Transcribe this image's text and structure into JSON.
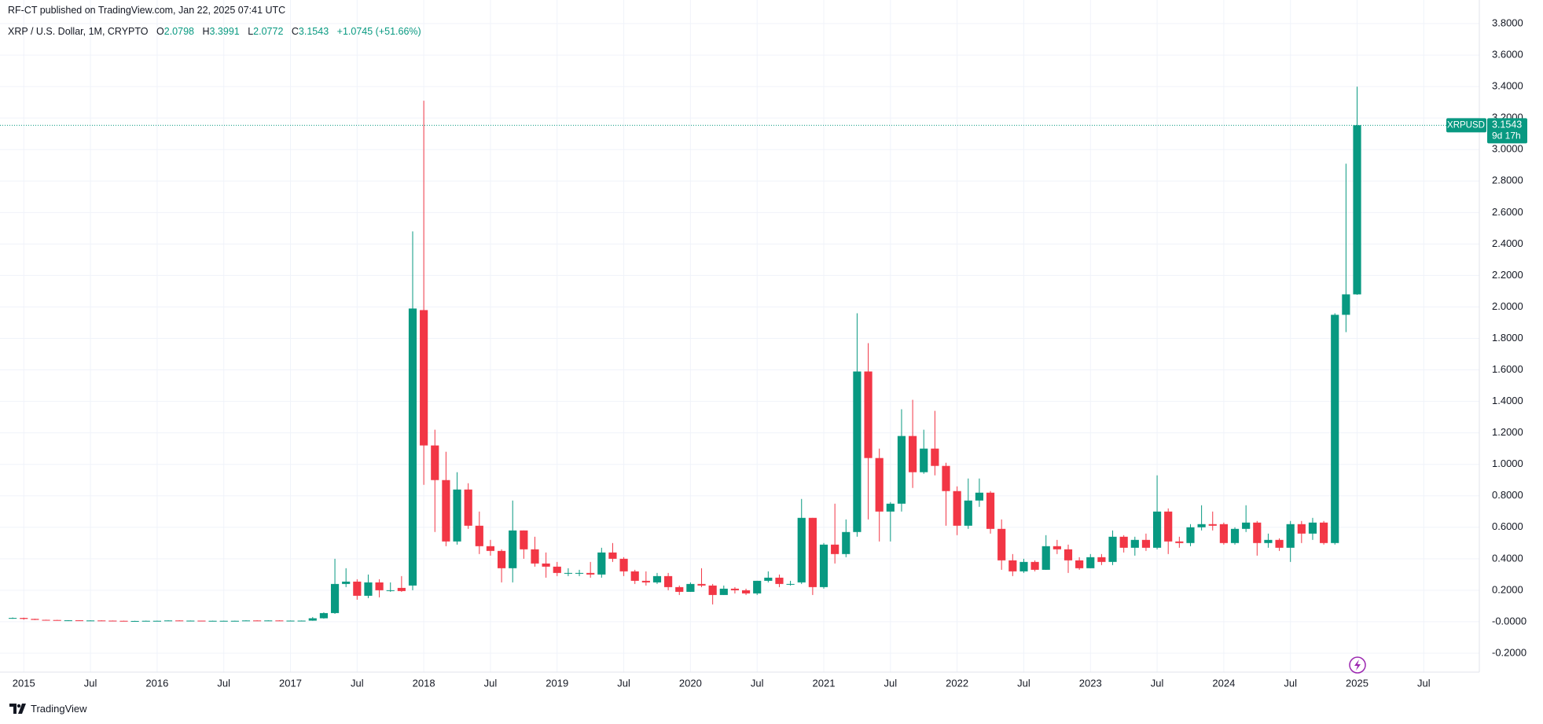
{
  "header": {
    "published": "RF-CT published on TradingView.com, Jan 22, 2025 07:41 UTC",
    "symbol": "XRP / U.S. Dollar, 1M, CRYPTO",
    "ohlc": [
      {
        "label": "O",
        "value": 2.0798
      },
      {
        "label": "H",
        "value": 3.3991
      },
      {
        "label": "L",
        "value": 2.0772
      },
      {
        "label": "C",
        "value": 3.1543
      }
    ],
    "change": "+1.0745",
    "change_pct": "(+51.66%)"
  },
  "footer": {
    "brand": "TradingView"
  },
  "chart_data": {
    "type": "candlestick",
    "up_color": "#089981",
    "down_color": "#f23645",
    "grid": true,
    "x": [
      "2014-12",
      "2015-01",
      "2015-02",
      "2015-03",
      "2015-04",
      "2015-05",
      "2015-06",
      "2015-07",
      "2015-08",
      "2015-09",
      "2015-10",
      "2015-11",
      "2015-12",
      "2016-01",
      "2016-02",
      "2016-03",
      "2016-04",
      "2016-05",
      "2016-06",
      "2016-07",
      "2016-08",
      "2016-09",
      "2016-10",
      "2016-11",
      "2016-12",
      "2017-01",
      "2017-02",
      "2017-03",
      "2017-04",
      "2017-05",
      "2017-06",
      "2017-07",
      "2017-08",
      "2017-09",
      "2017-10",
      "2017-11",
      "2017-12",
      "2018-01",
      "2018-02",
      "2018-03",
      "2018-04",
      "2018-05",
      "2018-06",
      "2018-07",
      "2018-08",
      "2018-09",
      "2018-10",
      "2018-11",
      "2018-12",
      "2019-01",
      "2019-02",
      "2019-03",
      "2019-04",
      "2019-05",
      "2019-06",
      "2019-07",
      "2019-08",
      "2019-09",
      "2019-10",
      "2019-11",
      "2019-12",
      "2020-01",
      "2020-02",
      "2020-03",
      "2020-04",
      "2020-05",
      "2020-06",
      "2020-07",
      "2020-08",
      "2020-09",
      "2020-10",
      "2020-11",
      "2020-12",
      "2021-01",
      "2021-02",
      "2021-03",
      "2021-04",
      "2021-05",
      "2021-06",
      "2021-07",
      "2021-08",
      "2021-09",
      "2021-10",
      "2021-11",
      "2021-12",
      "2022-01",
      "2022-02",
      "2022-03",
      "2022-04",
      "2022-05",
      "2022-06",
      "2022-07",
      "2022-08",
      "2022-09",
      "2022-10",
      "2022-11",
      "2022-12",
      "2023-01",
      "2023-02",
      "2023-03",
      "2023-04",
      "2023-05",
      "2023-06",
      "2023-07",
      "2023-08",
      "2023-09",
      "2023-10",
      "2023-11",
      "2023-12",
      "2024-01",
      "2024-02",
      "2024-03",
      "2024-04",
      "2024-05",
      "2024-06",
      "2024-07",
      "2024-08",
      "2024-09",
      "2024-10",
      "2024-11",
      "2024-12",
      "2025-01"
    ],
    "open": [
      0.02,
      0.024,
      0.018,
      0.012,
      0.011,
      0.008,
      0.009,
      0.008,
      0.008,
      0.007,
      0.006,
      0.005,
      0.005,
      0.006,
      0.006,
      0.008,
      0.007,
      0.007,
      0.006,
      0.006,
      0.006,
      0.006,
      0.008,
      0.007,
      0.008,
      0.006,
      0.007,
      0.007,
      0.022,
      0.055,
      0.24,
      0.255,
      0.165,
      0.25,
      0.2,
      0.215,
      0.23,
      1.98,
      1.12,
      0.9,
      0.51,
      0.84,
      0.61,
      0.48,
      0.45,
      0.34,
      0.58,
      0.46,
      0.37,
      0.35,
      0.31,
      0.31,
      0.31,
      0.3,
      0.44,
      0.4,
      0.32,
      0.26,
      0.25,
      0.29,
      0.22,
      0.19,
      0.24,
      0.23,
      0.17,
      0.21,
      0.2,
      0.18,
      0.26,
      0.28,
      0.24,
      0.25,
      0.66,
      0.22,
      0.49,
      0.43,
      0.57,
      1.59,
      1.04,
      0.7,
      0.75,
      1.18,
      0.95,
      1.1,
      0.99,
      0.83,
      0.61,
      0.77,
      0.82,
      0.59,
      0.39,
      0.32,
      0.38,
      0.33,
      0.48,
      0.46,
      0.39,
      0.34,
      0.41,
      0.38,
      0.54,
      0.47,
      0.52,
      0.47,
      0.7,
      0.51,
      0.5,
      0.6,
      0.62,
      0.62,
      0.5,
      0.59,
      0.63,
      0.5,
      0.52,
      0.47,
      0.62,
      0.56,
      0.63,
      0.5,
      1.95,
      2.0798
    ],
    "high": [
      0.027,
      0.026,
      0.019,
      0.013,
      0.012,
      0.01,
      0.01,
      0.009,
      0.009,
      0.008,
      0.007,
      0.006,
      0.007,
      0.007,
      0.009,
      0.009,
      0.008,
      0.007,
      0.007,
      0.007,
      0.007,
      0.009,
      0.009,
      0.009,
      0.009,
      0.008,
      0.008,
      0.03,
      0.06,
      0.4,
      0.34,
      0.27,
      0.3,
      0.27,
      0.25,
      0.29,
      2.48,
      3.31,
      1.22,
      1.08,
      0.95,
      0.88,
      0.7,
      0.52,
      0.46,
      0.77,
      0.58,
      0.54,
      0.44,
      0.38,
      0.34,
      0.33,
      0.38,
      0.47,
      0.5,
      0.41,
      0.33,
      0.32,
      0.31,
      0.31,
      0.23,
      0.25,
      0.34,
      0.24,
      0.23,
      0.22,
      0.21,
      0.26,
      0.32,
      0.3,
      0.26,
      0.78,
      0.66,
      0.5,
      0.75,
      0.65,
      1.96,
      1.77,
      1.1,
      0.76,
      1.35,
      1.41,
      1.22,
      1.34,
      1.01,
      0.86,
      0.91,
      0.91,
      0.83,
      0.65,
      0.43,
      0.4,
      0.39,
      0.55,
      0.52,
      0.49,
      0.41,
      0.43,
      0.43,
      0.58,
      0.55,
      0.54,
      0.56,
      0.93,
      0.72,
      0.54,
      0.62,
      0.74,
      0.7,
      0.63,
      0.6,
      0.74,
      0.64,
      0.56,
      0.53,
      0.64,
      0.64,
      0.66,
      0.64,
      1.96,
      2.91,
      3.3991
    ],
    "low": [
      0.019,
      0.013,
      0.011,
      0.01,
      0.007,
      0.007,
      0.008,
      0.007,
      0.006,
      0.006,
      0.005,
      0.004,
      0.004,
      0.005,
      0.005,
      0.006,
      0.006,
      0.005,
      0.005,
      0.005,
      0.005,
      0.005,
      0.006,
      0.006,
      0.006,
      0.006,
      0.006,
      0.006,
      0.02,
      0.05,
      0.22,
      0.14,
      0.15,
      0.155,
      0.19,
      0.19,
      0.2,
      0.87,
      0.57,
      0.48,
      0.49,
      0.59,
      0.43,
      0.42,
      0.25,
      0.25,
      0.4,
      0.35,
      0.28,
      0.29,
      0.29,
      0.29,
      0.28,
      0.28,
      0.38,
      0.29,
      0.24,
      0.23,
      0.24,
      0.2,
      0.17,
      0.19,
      0.22,
      0.11,
      0.17,
      0.18,
      0.17,
      0.17,
      0.25,
      0.22,
      0.23,
      0.24,
      0.17,
      0.21,
      0.37,
      0.41,
      0.54,
      0.65,
      0.51,
      0.51,
      0.7,
      0.85,
      0.94,
      0.93,
      0.61,
      0.55,
      0.59,
      0.73,
      0.56,
      0.33,
      0.29,
      0.31,
      0.32,
      0.33,
      0.43,
      0.31,
      0.33,
      0.34,
      0.36,
      0.36,
      0.44,
      0.42,
      0.45,
      0.46,
      0.43,
      0.47,
      0.48,
      0.58,
      0.58,
      0.49,
      0.49,
      0.57,
      0.42,
      0.47,
      0.45,
      0.38,
      0.5,
      0.52,
      0.49,
      0.49,
      1.84,
      2.0772
    ],
    "close": [
      0.024,
      0.018,
      0.012,
      0.011,
      0.008,
      0.009,
      0.008,
      0.008,
      0.007,
      0.006,
      0.005,
      0.005,
      0.006,
      0.006,
      0.008,
      0.007,
      0.007,
      0.006,
      0.006,
      0.006,
      0.006,
      0.008,
      0.007,
      0.008,
      0.006,
      0.007,
      0.007,
      0.022,
      0.055,
      0.24,
      0.255,
      0.165,
      0.25,
      0.2,
      0.2,
      0.195,
      1.99,
      1.12,
      0.9,
      0.51,
      0.84,
      0.61,
      0.48,
      0.45,
      0.34,
      0.58,
      0.46,
      0.37,
      0.35,
      0.31,
      0.31,
      0.31,
      0.3,
      0.44,
      0.4,
      0.32,
      0.26,
      0.25,
      0.29,
      0.22,
      0.19,
      0.24,
      0.23,
      0.17,
      0.21,
      0.2,
      0.18,
      0.26,
      0.28,
      0.24,
      0.24,
      0.66,
      0.22,
      0.49,
      0.43,
      0.57,
      1.59,
      1.04,
      0.7,
      0.75,
      1.18,
      0.95,
      1.1,
      0.99,
      0.83,
      0.61,
      0.77,
      0.82,
      0.59,
      0.39,
      0.32,
      0.38,
      0.33,
      0.48,
      0.46,
      0.39,
      0.34,
      0.41,
      0.38,
      0.54,
      0.47,
      0.52,
      0.47,
      0.7,
      0.51,
      0.5,
      0.6,
      0.62,
      0.61,
      0.5,
      0.59,
      0.63,
      0.5,
      0.52,
      0.47,
      0.62,
      0.56,
      0.63,
      0.5,
      1.95,
      2.08,
      3.1543
    ],
    "xlim": [
      "2014-11",
      "2025-12"
    ],
    "xticks": [
      {
        "value": "2015-01",
        "label": "2015"
      },
      {
        "value": "2015-07",
        "label": "Jul"
      },
      {
        "value": "2016-01",
        "label": "2016"
      },
      {
        "value": "2016-07",
        "label": "Jul"
      },
      {
        "value": "2017-01",
        "label": "2017"
      },
      {
        "value": "2017-07",
        "label": "Jul"
      },
      {
        "value": "2018-01",
        "label": "2018"
      },
      {
        "value": "2018-07",
        "label": "Jul"
      },
      {
        "value": "2019-01",
        "label": "2019"
      },
      {
        "value": "2019-07",
        "label": "Jul"
      },
      {
        "value": "2020-01",
        "label": "2020"
      },
      {
        "value": "2020-07",
        "label": "Jul"
      },
      {
        "value": "2021-01",
        "label": "2021"
      },
      {
        "value": "2021-07",
        "label": "Jul"
      },
      {
        "value": "2022-01",
        "label": "2022"
      },
      {
        "value": "2022-07",
        "label": "Jul"
      },
      {
        "value": "2023-01",
        "label": "2023"
      },
      {
        "value": "2023-07",
        "label": "Jul"
      },
      {
        "value": "2024-01",
        "label": "2024"
      },
      {
        "value": "2024-07",
        "label": "Jul"
      },
      {
        "value": "2025-01",
        "label": "2025"
      },
      {
        "value": "2025-07",
        "label": "Jul"
      }
    ],
    "ylim": [
      -0.32,
      3.95
    ],
    "yticks": [
      {
        "value": -0.2,
        "label": "-0.2000"
      },
      {
        "value": 0,
        "label": "-0.0000"
      },
      {
        "value": 0.2,
        "label": "0.2000"
      },
      {
        "value": 0.4,
        "label": "0.4000"
      },
      {
        "value": 0.6,
        "label": "0.6000"
      },
      {
        "value": 0.8,
        "label": "0.8000"
      },
      {
        "value": 1.0,
        "label": "1.0000"
      },
      {
        "value": 1.2,
        "label": "1.2000"
      },
      {
        "value": 1.4,
        "label": "1.4000"
      },
      {
        "value": 1.6,
        "label": "1.6000"
      },
      {
        "value": 1.8,
        "label": "1.8000"
      },
      {
        "value": 2.0,
        "label": "2.0000"
      },
      {
        "value": 2.2,
        "label": "2.2000"
      },
      {
        "value": 2.4,
        "label": "2.4000"
      },
      {
        "value": 2.6,
        "label": "2.6000"
      },
      {
        "value": 2.8,
        "label": "2.8000"
      },
      {
        "value": 3.0,
        "label": "3.0000"
      },
      {
        "value": 3.2,
        "label": "3.2000"
      },
      {
        "value": 3.4,
        "label": "3.4000"
      },
      {
        "value": 3.6,
        "label": "3.6000"
      },
      {
        "value": 3.8,
        "label": "3.8000"
      }
    ],
    "last_price": {
      "symbol": "XRPUSD",
      "value": 3.1543,
      "countdown": "9d 17h"
    }
  }
}
